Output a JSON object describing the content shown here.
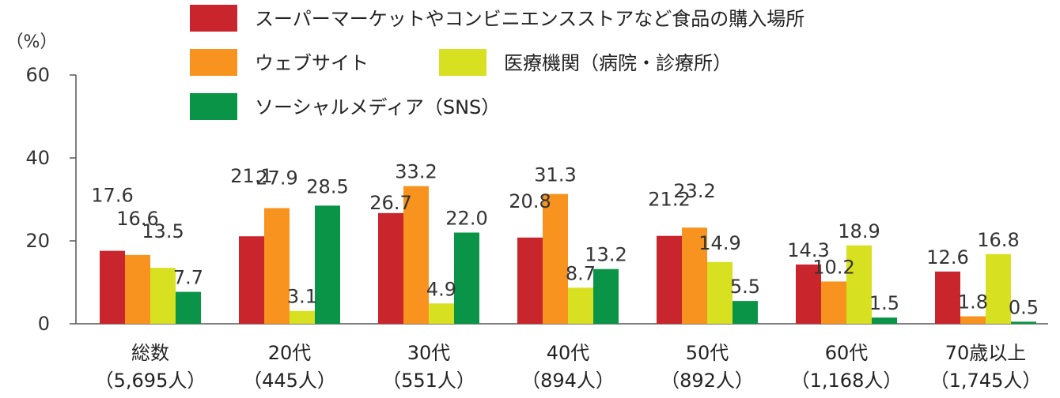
{
  "chart_data": {
    "type": "bar",
    "ylabel": "（%）",
    "ylim": [
      0,
      60
    ],
    "yticks": [
      0,
      20,
      40,
      60
    ],
    "grid": false,
    "legend_position": "top",
    "categories": [
      {
        "line1": "総数",
        "line2": "（5,695人）"
      },
      {
        "line1": "20代",
        "line2": "（445人）"
      },
      {
        "line1": "30代",
        "line2": "（551人）"
      },
      {
        "line1": "40代",
        "line2": "（894人）"
      },
      {
        "line1": "50代",
        "line2": "（892人）"
      },
      {
        "line1": "60代",
        "line2": "（1,168人）"
      },
      {
        "line1": "70歳以上",
        "line2": "（1,745人）"
      }
    ],
    "series": [
      {
        "name": "スーパーマーケットやコンビニエンスストアなど食品の購入場所",
        "color": "#c9252d",
        "values": [
          17.6,
          21.1,
          26.7,
          20.8,
          21.2,
          14.3,
          12.6
        ],
        "labels": [
          "17.6",
          "21.1",
          "26.7",
          "20.8",
          "21.2",
          "14.3",
          "12.6"
        ]
      },
      {
        "name": "ウェブサイト",
        "color": "#f7931e",
        "values": [
          16.6,
          27.9,
          33.2,
          31.3,
          23.2,
          10.2,
          1.8
        ],
        "labels": [
          "16.6",
          "27.9",
          "33.2",
          "31.3",
          "23.2",
          "10.2",
          "1.8"
        ]
      },
      {
        "name": "医療機関（病院・診療所）",
        "color": "#d7e021",
        "values": [
          13.5,
          3.1,
          4.9,
          8.7,
          14.9,
          18.9,
          16.8
        ],
        "labels": [
          "13.5",
          "3.1",
          "4.9",
          "8.7",
          "14.9",
          "18.9",
          "16.8"
        ]
      },
      {
        "name": "ソーシャルメディア（SNS）",
        "color": "#0a9447",
        "values": [
          7.7,
          28.5,
          22.0,
          13.2,
          5.5,
          1.5,
          0.5
        ],
        "labels": [
          "7.7",
          "28.5",
          "22.0",
          "13.2",
          "5.5",
          "1.5",
          "0.5"
        ]
      }
    ]
  }
}
